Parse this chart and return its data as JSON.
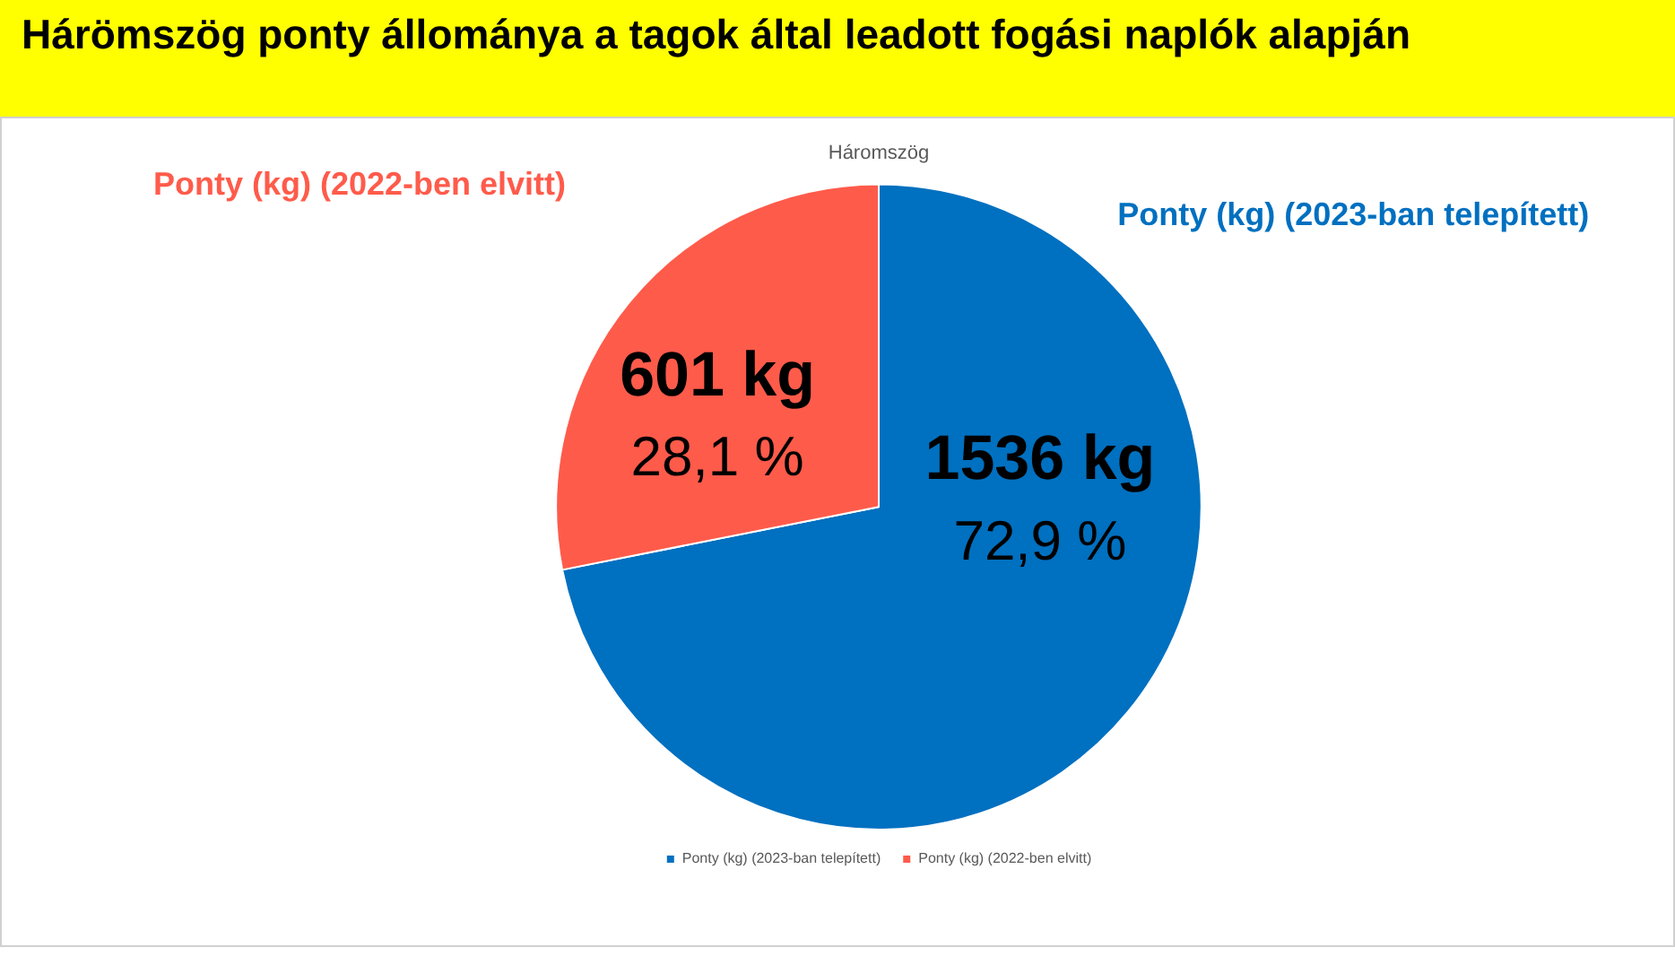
{
  "chart_data": {
    "type": "pie",
    "title": "Hárömszög ponty állománya a tagok által leadott fogási naplók alapján",
    "subtitle": "Háromszög",
    "categories": [
      "Ponty (kg) (2023-ban telepített)",
      "Ponty (kg) (2022-ben elvitt)"
    ],
    "values": [
      1536,
      601
    ],
    "colors": [
      "#0070c0",
      "#ff5b4b"
    ],
    "value_labels": [
      "1536 kg\n72,9 %",
      "601 kg\n28,1 %"
    ],
    "legend": "bottom"
  }
}
